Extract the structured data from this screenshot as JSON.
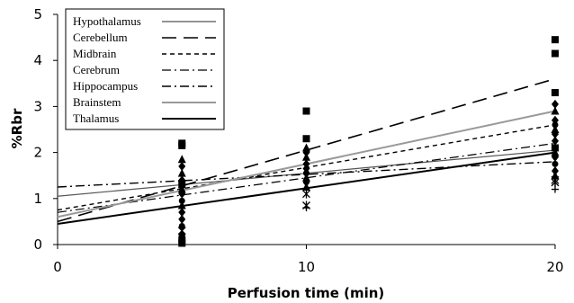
{
  "chart_data": {
    "type": "scatter",
    "title": "",
    "xlabel": "Perfusion time (min)",
    "ylabel": "%Rbr",
    "xlim": [
      0,
      20
    ],
    "ylim": [
      0,
      5
    ],
    "x_ticks": [
      0,
      10,
      20
    ],
    "y_ticks": [
      0,
      1,
      2,
      3,
      4,
      5
    ],
    "grid": false,
    "legend_position": "top-left",
    "points": [
      {
        "x": 5,
        "y": 2.2,
        "marker": "square"
      },
      {
        "x": 5,
        "y": 2.15,
        "marker": "square"
      },
      {
        "x": 5,
        "y": 1.85,
        "marker": "triangle"
      },
      {
        "x": 5,
        "y": 1.7,
        "marker": "diamond"
      },
      {
        "x": 5,
        "y": 1.55,
        "marker": "triangle"
      },
      {
        "x": 5,
        "y": 1.4,
        "marker": "diamond"
      },
      {
        "x": 5,
        "y": 1.3,
        "marker": "square"
      },
      {
        "x": 5,
        "y": 1.2,
        "marker": "triangle"
      },
      {
        "x": 5,
        "y": 1.1,
        "marker": "diamond"
      },
      {
        "x": 5,
        "y": 0.95,
        "marker": "circle"
      },
      {
        "x": 5,
        "y": 0.85,
        "marker": "triangle"
      },
      {
        "x": 5,
        "y": 0.7,
        "marker": "diamond"
      },
      {
        "x": 5,
        "y": 0.55,
        "marker": "diamond"
      },
      {
        "x": 5,
        "y": 0.4,
        "marker": "circle"
      },
      {
        "x": 5,
        "y": 0.3,
        "marker": "star"
      },
      {
        "x": 5,
        "y": 0.2,
        "marker": "diamond"
      },
      {
        "x": 5,
        "y": 0.1,
        "marker": "square"
      },
      {
        "x": 5,
        "y": 0.03,
        "marker": "square"
      },
      {
        "x": 10,
        "y": 2.9,
        "marker": "square"
      },
      {
        "x": 10,
        "y": 2.3,
        "marker": "square"
      },
      {
        "x": 10,
        "y": 2.1,
        "marker": "triangle"
      },
      {
        "x": 10,
        "y": 2.0,
        "marker": "diamond"
      },
      {
        "x": 10,
        "y": 1.9,
        "marker": "triangle"
      },
      {
        "x": 10,
        "y": 1.75,
        "marker": "diamond"
      },
      {
        "x": 10,
        "y": 1.65,
        "marker": "diamond"
      },
      {
        "x": 10,
        "y": 1.55,
        "marker": "circle"
      },
      {
        "x": 10,
        "y": 1.45,
        "marker": "triangle"
      },
      {
        "x": 10,
        "y": 1.35,
        "marker": "diamond"
      },
      {
        "x": 10,
        "y": 1.25,
        "marker": "triangle"
      },
      {
        "x": 10,
        "y": 1.1,
        "marker": "star"
      },
      {
        "x": 10,
        "y": 0.85,
        "marker": "star"
      },
      {
        "x": 10,
        "y": 0.8,
        "marker": "plus"
      },
      {
        "x": 20,
        "y": 4.45,
        "marker": "square"
      },
      {
        "x": 20,
        "y": 4.15,
        "marker": "square"
      },
      {
        "x": 20,
        "y": 3.3,
        "marker": "square"
      },
      {
        "x": 20,
        "y": 3.05,
        "marker": "diamond"
      },
      {
        "x": 20,
        "y": 2.9,
        "marker": "triangle"
      },
      {
        "x": 20,
        "y": 2.7,
        "marker": "diamond"
      },
      {
        "x": 20,
        "y": 2.6,
        "marker": "circle"
      },
      {
        "x": 20,
        "y": 2.5,
        "marker": "triangle"
      },
      {
        "x": 20,
        "y": 2.4,
        "marker": "diamond"
      },
      {
        "x": 20,
        "y": 2.25,
        "marker": "diamond"
      },
      {
        "x": 20,
        "y": 2.1,
        "marker": "square"
      },
      {
        "x": 20,
        "y": 2.0,
        "marker": "triangle"
      },
      {
        "x": 20,
        "y": 1.9,
        "marker": "diamond"
      },
      {
        "x": 20,
        "y": 1.75,
        "marker": "circle"
      },
      {
        "x": 20,
        "y": 1.6,
        "marker": "diamond"
      },
      {
        "x": 20,
        "y": 1.5,
        "marker": "triangle"
      },
      {
        "x": 20,
        "y": 1.4,
        "marker": "star"
      },
      {
        "x": 20,
        "y": 1.35,
        "marker": "star"
      },
      {
        "x": 20,
        "y": 1.2,
        "marker": "plus"
      }
    ],
    "series": [
      {
        "name": "Hypothalamus",
        "line": {
          "x": [
            0,
            20
          ],
          "y": [
            1.05,
            2.05
          ]
        },
        "color": "#555555",
        "dash": "solid",
        "width": 1.2
      },
      {
        "name": "Cerebellum",
        "line": {
          "x": [
            0,
            20
          ],
          "y": [
            0.5,
            3.6
          ]
        },
        "color": "#000000",
        "dash": "long-dash",
        "width": 1.6
      },
      {
        "name": "Midbrain",
        "line": {
          "x": [
            0,
            20
          ],
          "y": [
            0.75,
            2.6
          ]
        },
        "color": "#000000",
        "dash": "short-dash",
        "width": 1.4
      },
      {
        "name": "Cerebrum",
        "line": {
          "x": [
            0,
            20
          ],
          "y": [
            0.7,
            2.2
          ]
        },
        "color": "#000000",
        "dash": "dash-dot",
        "width": 1.2
      },
      {
        "name": "Hippocampus",
        "line": {
          "x": [
            0,
            20
          ],
          "y": [
            1.25,
            1.8
          ]
        },
        "color": "#000000",
        "dash": "dash-dot",
        "width": 1.4
      },
      {
        "name": "Brainstem",
        "line": {
          "x": [
            0,
            20
          ],
          "y": [
            0.6,
            2.9
          ]
        },
        "color": "#999999",
        "dash": "solid",
        "width": 2.0
      },
      {
        "name": "Thalamus",
        "line": {
          "x": [
            0,
            20
          ],
          "y": [
            0.45,
            2.0
          ]
        },
        "color": "#000000",
        "dash": "solid",
        "width": 2.0
      }
    ]
  }
}
